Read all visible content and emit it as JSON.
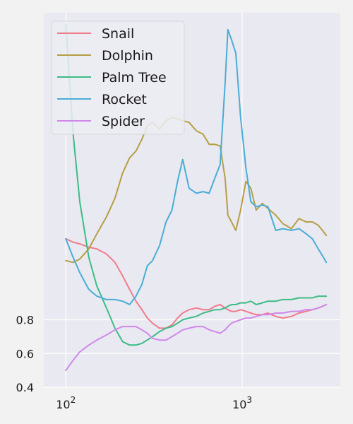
{
  "chart_data": {
    "type": "line",
    "title": "",
    "xlabel": "",
    "ylabel": "",
    "xscale": "log",
    "xlim": [
      75,
      3600
    ],
    "ylim": [
      0.4,
      2.62
    ],
    "grid": true,
    "legend_position": "top-left",
    "x_ticks": [
      {
        "value": 100,
        "base": "10",
        "exp": "2"
      },
      {
        "value": 1000,
        "base": "10",
        "exp": "3"
      }
    ],
    "y_ticks": [
      {
        "value": 0.4,
        "label": "0.4"
      },
      {
        "value": 0.6,
        "label": "0.6"
      },
      {
        "value": 0.8,
        "label": "0.8"
      }
    ],
    "x": [
      100,
      110,
      120,
      135,
      150,
      170,
      190,
      210,
      230,
      250,
      270,
      290,
      310,
      340,
      370,
      400,
      430,
      460,
      500,
      550,
      600,
      650,
      700,
      750,
      800,
      830,
      870,
      920,
      980,
      1050,
      1120,
      1200,
      1300,
      1400,
      1550,
      1700,
      1900,
      2100,
      2300,
      2500,
      2700,
      2850,
      3000
    ],
    "series": [
      {
        "name": "Snail",
        "color": "#f07b8d",
        "values": [
          1.28,
          1.26,
          1.25,
          1.23,
          1.22,
          1.19,
          1.14,
          1.06,
          0.98,
          0.91,
          0.86,
          0.81,
          0.78,
          0.75,
          0.75,
          0.77,
          0.81,
          0.84,
          0.86,
          0.87,
          0.86,
          0.86,
          0.88,
          0.89,
          0.87,
          0.86,
          0.85,
          0.85,
          0.86,
          0.85,
          0.84,
          0.83,
          0.83,
          0.84,
          0.82,
          0.81,
          0.82,
          0.84,
          0.85,
          0.86,
          0.87,
          0.88,
          0.89
        ]
      },
      {
        "name": "Dolphin",
        "color": "#b59f45",
        "values": [
          1.15,
          1.14,
          1.16,
          1.22,
          1.31,
          1.41,
          1.52,
          1.67,
          1.76,
          1.8,
          1.87,
          1.95,
          1.97,
          1.93,
          1.98,
          2.0,
          1.99,
          1.98,
          1.97,
          1.92,
          1.9,
          1.84,
          1.84,
          1.83,
          1.64,
          1.42,
          1.38,
          1.33,
          1.45,
          1.62,
          1.58,
          1.45,
          1.49,
          1.46,
          1.42,
          1.37,
          1.34,
          1.4,
          1.38,
          1.38,
          1.36,
          1.33,
          1.3
        ]
      },
      {
        "name": "Palm Tree",
        "color": "#3ebc86",
        "values": [
          2.55,
          1.9,
          1.5,
          1.17,
          1.0,
          0.87,
          0.75,
          0.67,
          0.65,
          0.65,
          0.66,
          0.68,
          0.7,
          0.73,
          0.75,
          0.76,
          0.78,
          0.8,
          0.81,
          0.82,
          0.84,
          0.85,
          0.86,
          0.86,
          0.87,
          0.88,
          0.89,
          0.89,
          0.9,
          0.9,
          0.91,
          0.89,
          0.9,
          0.91,
          0.91,
          0.92,
          0.92,
          0.93,
          0.93,
          0.93,
          0.94,
          0.94,
          0.94
        ]
      },
      {
        "name": "Rocket",
        "color": "#4aadd6",
        "values": [
          1.28,
          1.17,
          1.08,
          0.98,
          0.94,
          0.92,
          0.92,
          0.91,
          0.89,
          0.94,
          1.01,
          1.12,
          1.15,
          1.24,
          1.38,
          1.45,
          1.62,
          1.75,
          1.58,
          1.55,
          1.56,
          1.55,
          1.64,
          1.72,
          2.2,
          2.52,
          2.46,
          2.38,
          2.0,
          1.7,
          1.5,
          1.47,
          1.48,
          1.47,
          1.33,
          1.34,
          1.33,
          1.34,
          1.31,
          1.28,
          1.22,
          1.18,
          1.14
        ]
      },
      {
        "name": "Spider",
        "color": "#cf88ea",
        "values": [
          0.5,
          0.56,
          0.61,
          0.65,
          0.68,
          0.71,
          0.74,
          0.76,
          0.76,
          0.76,
          0.74,
          0.72,
          0.69,
          0.68,
          0.68,
          0.7,
          0.72,
          0.74,
          0.75,
          0.76,
          0.76,
          0.74,
          0.73,
          0.72,
          0.74,
          0.76,
          0.78,
          0.79,
          0.8,
          0.81,
          0.81,
          0.82,
          0.83,
          0.83,
          0.84,
          0.84,
          0.85,
          0.85,
          0.86,
          0.86,
          0.87,
          0.88,
          0.89
        ]
      }
    ]
  }
}
